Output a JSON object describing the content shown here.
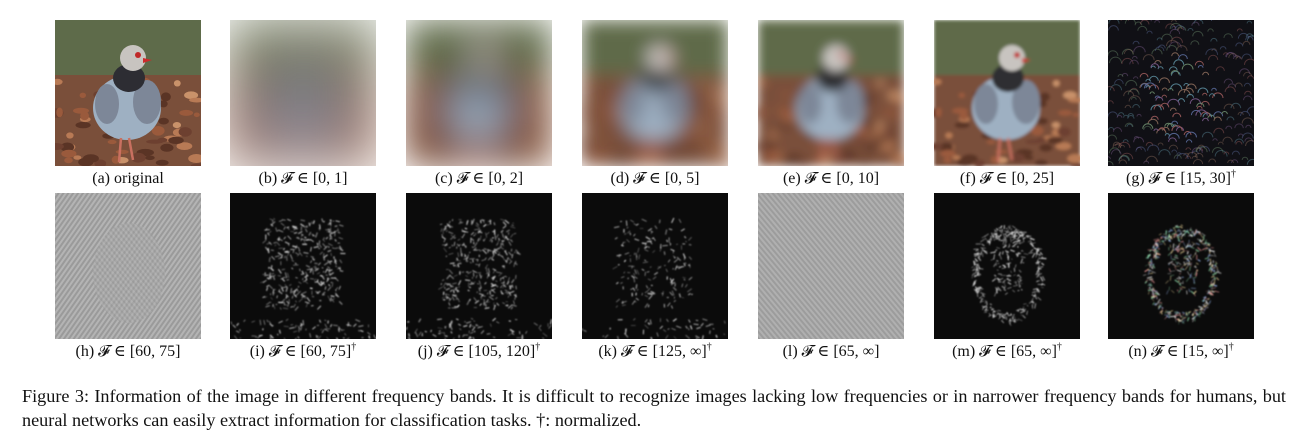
{
  "panels": [
    {
      "caption": "(a) original",
      "kind": "original"
    },
    {
      "caption": "(b) 𝓕 ∈ [0, 1]",
      "kind": "blur1"
    },
    {
      "caption": "(c) 𝓕 ∈ [0, 2]",
      "kind": "blur2"
    },
    {
      "caption": "(d) 𝓕 ∈ [0, 5]",
      "kind": "blur5"
    },
    {
      "caption": "(e) 𝓕 ∈ [0, 10]",
      "kind": "blur10"
    },
    {
      "caption": "(f) 𝓕 ∈ [0, 25]",
      "kind": "blur25"
    },
    {
      "caption": "(g) 𝓕 ∈ [15, 30]",
      "dagger": "†",
      "kind": "band-color"
    },
    {
      "caption": "(h) 𝓕 ∈ [60, 75]",
      "kind": "gray"
    },
    {
      "caption": "(i) 𝓕 ∈ [60, 75]",
      "dagger": "†",
      "kind": "dark-edges"
    },
    {
      "caption": "(j) 𝓕 ∈ [105, 120]",
      "dagger": "†",
      "kind": "dark-edges"
    },
    {
      "caption": "(k) 𝓕 ∈ [125, ∞]",
      "dagger": "†",
      "kind": "dark-sparse"
    },
    {
      "caption": "(l) 𝓕 ∈ [65, ∞]",
      "kind": "gray"
    },
    {
      "caption": "(m) 𝓕 ∈ [65, ∞]",
      "dagger": "†",
      "kind": "dark-outline"
    },
    {
      "caption": "(n) 𝓕 ∈ [15, ∞]",
      "dagger": "†",
      "kind": "dark-outline-color"
    }
  ],
  "figure_caption": "Figure 3: Information of the image in different frequency bands. It is difficult to recognize images lacking low frequencies or in narrower frequency bands for humans, but neural networks can easily extract information for classification tasks. †: normalized."
}
